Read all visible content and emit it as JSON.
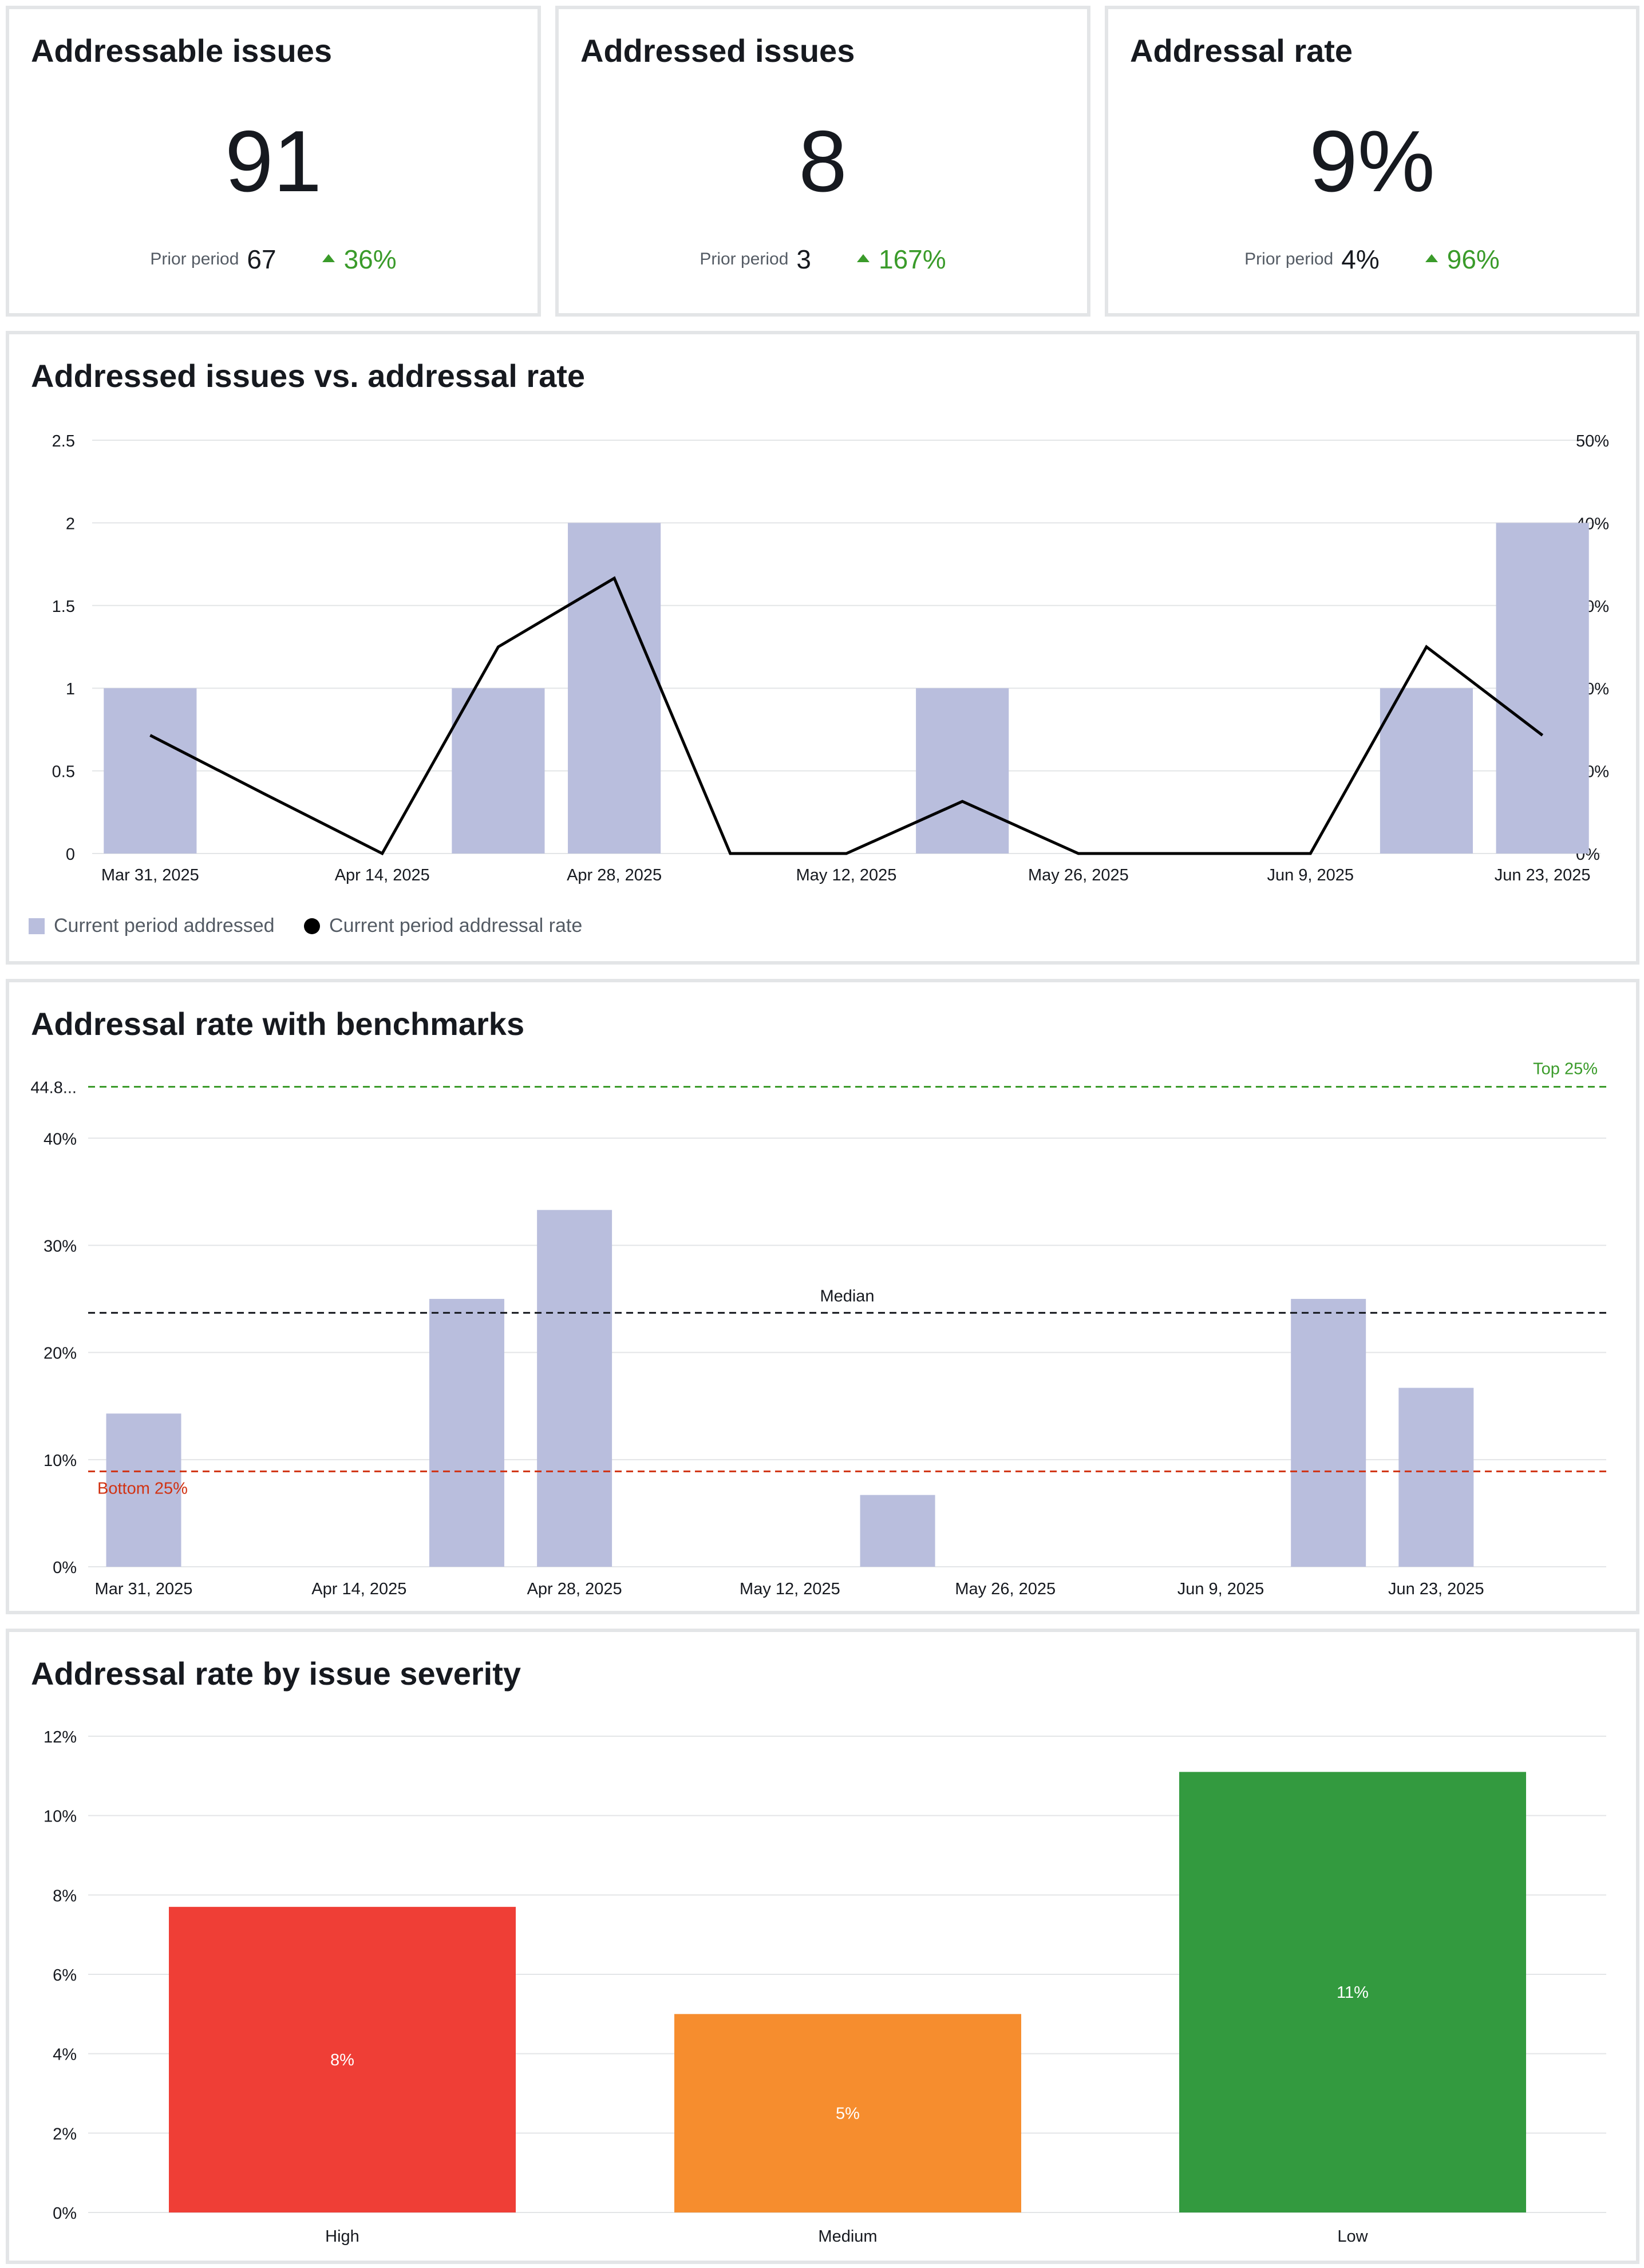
{
  "kpis": [
    {
      "title": "Addressable issues",
      "value": "91",
      "prior_label": "Prior period",
      "prior_value": "67",
      "delta": "36%"
    },
    {
      "title": "Addressed issues",
      "value": "8",
      "prior_label": "Prior period",
      "prior_value": "3",
      "delta": "167%"
    },
    {
      "title": "Addressal rate",
      "value": "9%",
      "prior_label": "Prior period",
      "prior_value": "4%",
      "delta": "96%"
    }
  ],
  "colors": {
    "bar": "#b9bedd",
    "line": "#000000",
    "positive": "#3a9b2a",
    "top": "#3a9b2a",
    "median": "#16191f",
    "bottom": "#d13212",
    "high": "#ef3e36",
    "medium": "#f68d2e",
    "low": "#339a3f"
  },
  "chart_data": [
    {
      "type": "bar",
      "title": "Addressed issues vs. addressal rate",
      "x_ticks": [
        "Mar 31, 2025",
        "Apr 14, 2025",
        "Apr 28, 2025",
        "May 12, 2025",
        "May 26, 2025",
        "Jun 9, 2025",
        "Jun 23, 2025"
      ],
      "categories": [
        "2025-03-31",
        "2025-04-07",
        "2025-04-14",
        "2025-04-21",
        "2025-04-28",
        "2025-05-05",
        "2025-05-12",
        "2025-05-19",
        "2025-05-26",
        "2025-06-02",
        "2025-06-09",
        "2025-06-16",
        "2025-06-23"
      ],
      "y_left_ticks": [
        "0",
        "0.5",
        "1",
        "1.5",
        "2",
        "2.5"
      ],
      "y_right_ticks": [
        "0%",
        "10%",
        "20%",
        "30%",
        "40%",
        "50%"
      ],
      "ylim_left": [
        0,
        2.5
      ],
      "ylim_right": [
        0,
        50
      ],
      "series": [
        {
          "name": "Current period addressed",
          "type": "bar",
          "axis": "left",
          "values": [
            1,
            0,
            0,
            1,
            2,
            0,
            0,
            1,
            0,
            0,
            0,
            1,
            2
          ]
        },
        {
          "name": "Current period addressal rate",
          "type": "line",
          "axis": "right",
          "values": [
            14.3,
            7.1,
            0,
            25,
            33.3,
            0,
            0,
            6.3,
            0,
            0,
            0,
            25,
            14.3
          ]
        }
      ],
      "legend_position": "bottom-left"
    },
    {
      "type": "bar",
      "title": "Addressal rate with benchmarks",
      "x_ticks": [
        "Mar 31, 2025",
        "Apr 14, 2025",
        "Apr 28, 2025",
        "May 12, 2025",
        "May 26, 2025",
        "Jun 9, 2025",
        "Jun 23, 2025"
      ],
      "categories": [
        "2025-03-31",
        "2025-04-07",
        "2025-04-14",
        "2025-04-21",
        "2025-04-28",
        "2025-05-05",
        "2025-05-12",
        "2025-05-19",
        "2025-05-26",
        "2025-06-02",
        "2025-06-09",
        "2025-06-16",
        "2025-06-23"
      ],
      "values": [
        14.3,
        0,
        0,
        25,
        33.3,
        0,
        0,
        6.7,
        0,
        0,
        0,
        25,
        16.7
      ],
      "y_ticks": [
        "0%",
        "10%",
        "20%",
        "30%",
        "40%"
      ],
      "ylim": [
        0,
        46
      ],
      "benchmarks": [
        {
          "label": "Top 25%",
          "value": 44.8,
          "axis_label": "44.8..."
        },
        {
          "label": "Median",
          "value": 23.7
        },
        {
          "label": "Bottom 25%",
          "value": 8.9
        }
      ]
    },
    {
      "type": "bar",
      "title": "Addressal rate by issue severity",
      "categories": [
        "High",
        "Medium",
        "Low"
      ],
      "values": [
        7.7,
        5,
        11.1
      ],
      "data_labels": [
        "8%",
        "5%",
        "11%"
      ],
      "y_ticks": [
        "0%",
        "2%",
        "4%",
        "6%",
        "8%",
        "10%",
        "12%"
      ],
      "ylim": [
        0,
        12
      ]
    }
  ]
}
